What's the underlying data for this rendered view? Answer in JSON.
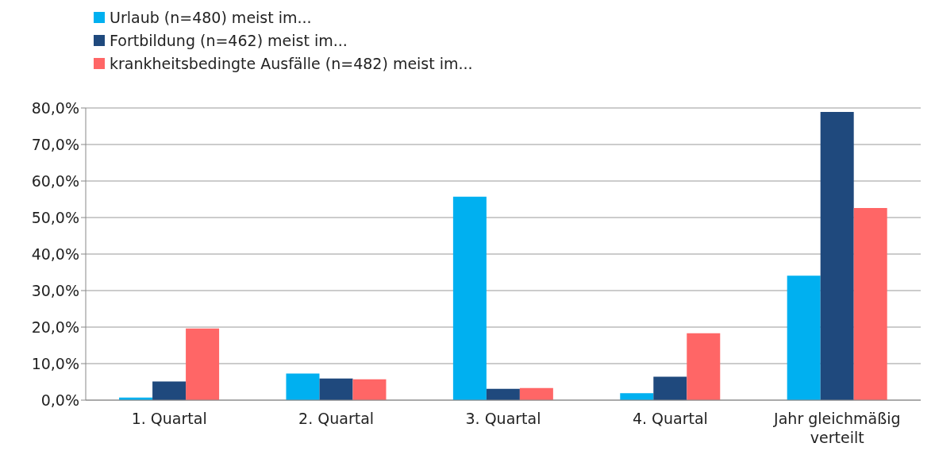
{
  "chart_data": {
    "type": "bar",
    "categories": [
      "1. Quartal",
      "2. Quartal",
      "3. Quartal",
      "4. Quartal",
      "Jahr gleichmäßig verteilt"
    ],
    "series": [
      {
        "name": "Urlaub (n=480) meist im...",
        "color": "#00b0f0",
        "values": [
          0.7,
          7.3,
          55.7,
          1.9,
          34.1
        ]
      },
      {
        "name": "Fortbildung (n=462) meist im...",
        "color": "#1f497d",
        "values": [
          5.1,
          5.9,
          3.1,
          6.4,
          78.9
        ]
      },
      {
        "name": "krankheitsbedingte Ausfälle (n=482) meist im...",
        "color": "#ff6666",
        "values": [
          19.6,
          5.7,
          3.3,
          18.3,
          52.6
        ]
      }
    ],
    "ylim": [
      0,
      80
    ],
    "yticks": [
      {
        "value": 0,
        "label": "0,0%"
      },
      {
        "value": 10,
        "label": "10,0%"
      },
      {
        "value": 20,
        "label": "20,0%"
      },
      {
        "value": 30,
        "label": "30,0%"
      },
      {
        "value": 40,
        "label": "40,0%"
      },
      {
        "value": 50,
        "label": "50,0%"
      },
      {
        "value": 60,
        "label": "60,0%"
      },
      {
        "value": 70,
        "label": "70,0%"
      },
      {
        "value": 80,
        "label": "80,0%"
      }
    ],
    "grid": "y",
    "legend": "top left"
  }
}
